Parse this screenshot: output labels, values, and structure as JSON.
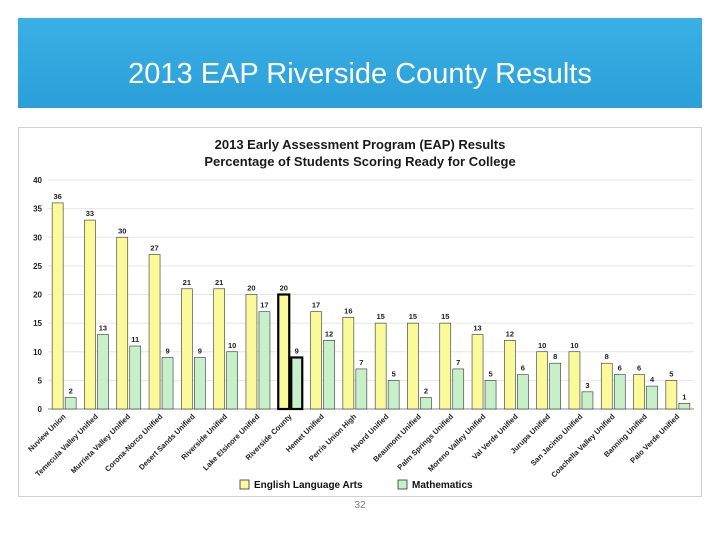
{
  "slide": {
    "title": "2013 EAP Riverside County Results",
    "page_number": "32"
  },
  "colors": {
    "band": "#2ea4dc",
    "ela": "#fafa9b",
    "math": "#c8f0c8",
    "bar_stroke": "#333333",
    "grid": "#e6e6e6"
  },
  "chart_data": {
    "type": "bar",
    "title": "2013 Early Assessment Program (EAP) Results",
    "subtitle": "Percentage of Students Scoring Ready for College",
    "categories": [
      "Nuview Union",
      "Temecula Valley Unified",
      "Murrieta Valley Unified",
      "Corona-Norco Unified",
      "Desert Sands Unified",
      "Riverside Unified",
      "Lake Elsinore Unified",
      "Riverside County",
      "Hemet Unified",
      "Perris Union High",
      "Alvord Unified",
      "Beaumont Unified",
      "Palm Springs Unified",
      "Moreno Valley Unified",
      "Val Verde Unified",
      "Jurupa Unified",
      "San Jacinto Unified",
      "Coachella Valley Unified",
      "Banning Unified",
      "Palo Verde Unified"
    ],
    "series": [
      {
        "name": "English Language Arts",
        "values": [
          36,
          33,
          30,
          27,
          21,
          21,
          20,
          20,
          17,
          16,
          15,
          15,
          15,
          13,
          12,
          10,
          10,
          8,
          6,
          5
        ]
      },
      {
        "name": "Mathematics",
        "values": [
          2,
          13,
          11,
          9,
          9,
          10,
          17,
          9,
          12,
          7,
          5,
          2,
          7,
          5,
          6,
          8,
          3,
          6,
          4,
          1
        ]
      }
    ],
    "highlight_category": "Riverside County",
    "ylim": [
      0,
      40
    ],
    "yticks": [
      0,
      5,
      10,
      15,
      20,
      25,
      30,
      35,
      40
    ],
    "grid": true,
    "legend_position": "bottom"
  }
}
